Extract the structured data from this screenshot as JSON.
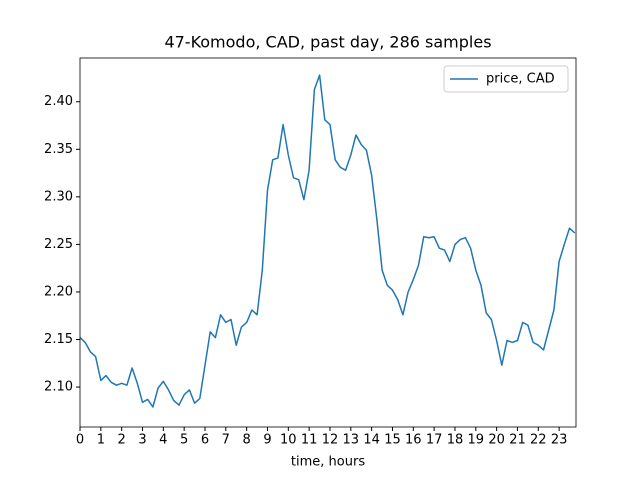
{
  "chart_data": {
    "type": "line",
    "title": "47-Komodo, CAD, past day, 286 samples",
    "xlabel": "time, hours",
    "x": [
      0,
      0.25,
      0.5,
      0.75,
      1,
      1.25,
      1.5,
      1.75,
      2,
      2.25,
      2.5,
      2.75,
      3,
      3.25,
      3.5,
      3.75,
      4,
      4.25,
      4.5,
      4.75,
      5,
      5.25,
      5.5,
      5.75,
      6,
      6.25,
      6.5,
      6.75,
      7,
      7.25,
      7.5,
      7.75,
      8,
      8.25,
      8.5,
      8.75,
      9,
      9.25,
      9.5,
      9.75,
      10,
      10.25,
      10.5,
      10.75,
      11,
      11.25,
      11.5,
      11.75,
      12,
      12.25,
      12.5,
      12.75,
      13,
      13.25,
      13.5,
      13.75,
      14,
      14.25,
      14.5,
      14.75,
      15,
      15.25,
      15.5,
      15.75,
      16,
      16.25,
      16.5,
      16.75,
      17,
      17.25,
      17.5,
      17.75,
      18,
      18.25,
      18.5,
      18.75,
      19,
      19.25,
      19.5,
      19.75,
      20,
      20.25,
      20.5,
      20.75,
      21,
      21.25,
      21.5,
      21.75,
      22,
      22.25,
      22.5,
      22.75,
      23,
      23.25,
      23.5,
      23.75
    ],
    "series": [
      {
        "name": "price, CAD",
        "color": "#1f77b4",
        "values": [
          2.152,
          2.147,
          2.137,
          2.132,
          2.107,
          2.112,
          2.105,
          2.102,
          2.104,
          2.102,
          2.12,
          2.104,
          2.084,
          2.087,
          2.079,
          2.099,
          2.106,
          2.097,
          2.086,
          2.081,
          2.092,
          2.097,
          2.083,
          2.088,
          2.123,
          2.158,
          2.152,
          2.176,
          2.168,
          2.171,
          2.144,
          2.163,
          2.168,
          2.181,
          2.176,
          2.223,
          2.307,
          2.339,
          2.341,
          2.376,
          2.344,
          2.32,
          2.318,
          2.297,
          2.328,
          2.413,
          2.428,
          2.381,
          2.376,
          2.339,
          2.331,
          2.328,
          2.344,
          2.365,
          2.355,
          2.349,
          2.323,
          2.276,
          2.223,
          2.207,
          2.202,
          2.192,
          2.176,
          2.2,
          2.213,
          2.228,
          2.258,
          2.257,
          2.258,
          2.246,
          2.244,
          2.232,
          2.25,
          2.255,
          2.257,
          2.246,
          2.223,
          2.207,
          2.178,
          2.171,
          2.149,
          2.123,
          2.149,
          2.147,
          2.149,
          2.168,
          2.165,
          2.147,
          2.144,
          2.139,
          2.16,
          2.181,
          2.232,
          2.25,
          2.267,
          2.262
        ]
      }
    ],
    "xlim": [
      0,
      23.81
    ],
    "ylim": [
      2.058,
      2.446
    ],
    "xticks": [
      0,
      1,
      2,
      3,
      4,
      5,
      6,
      7,
      8,
      9,
      10,
      11,
      12,
      13,
      14,
      15,
      16,
      17,
      18,
      19,
      20,
      21,
      22,
      23
    ],
    "yticks": [
      {
        "value": 2.1,
        "label": "2.10"
      },
      {
        "value": 2.15,
        "label": "2.15"
      },
      {
        "value": 2.2,
        "label": "2.20"
      },
      {
        "value": 2.25,
        "label": "2.25"
      },
      {
        "value": 2.3,
        "label": "2.30"
      },
      {
        "value": 2.35,
        "label": "2.35"
      },
      {
        "value": 2.4,
        "label": "2.40"
      }
    ],
    "legend": "upper right"
  }
}
